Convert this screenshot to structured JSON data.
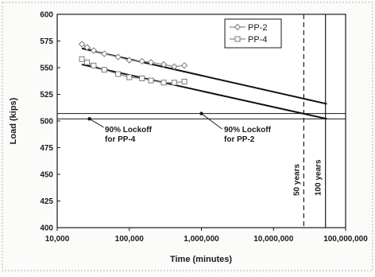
{
  "chart_data": {
    "type": "line",
    "xlabel": "Time (minutes)",
    "ylabel": "Load (kips)",
    "xscale": "log",
    "xlim": [
      10000,
      100000000
    ],
    "ylim": [
      400,
      600
    ],
    "x_ticks": [
      10000,
      100000,
      1000000,
      10000000,
      100000000
    ],
    "x_tick_labels": [
      "10,000",
      "100,000",
      "1,000,000",
      "10,000,000",
      "100,000,000"
    ],
    "y_ticks": [
      400,
      425,
      450,
      475,
      500,
      525,
      550,
      575,
      600
    ],
    "y_tick_labels": [
      "400",
      "425",
      "450",
      "475",
      "500",
      "525",
      "550",
      "575",
      "600"
    ],
    "grid": false,
    "legend": {
      "position": "top-right",
      "entries": [
        "PP-2",
        "PP-4"
      ]
    },
    "series": [
      {
        "name": "PP-2",
        "marker": "diamond",
        "color": "#8a8a8a",
        "points": [
          {
            "x": 22000,
            "y": 572
          },
          {
            "x": 26000,
            "y": 569
          },
          {
            "x": 32000,
            "y": 566
          },
          {
            "x": 45000,
            "y": 563
          },
          {
            "x": 70000,
            "y": 560
          },
          {
            "x": 100000,
            "y": 557
          },
          {
            "x": 150000,
            "y": 556
          },
          {
            "x": 200000,
            "y": 555
          },
          {
            "x": 300000,
            "y": 553
          },
          {
            "x": 420000,
            "y": 551
          },
          {
            "x": 580000,
            "y": 552
          }
        ]
      },
      {
        "name": "PP-4",
        "marker": "square",
        "color": "#8a8a8a",
        "points": [
          {
            "x": 22000,
            "y": 558
          },
          {
            "x": 26000,
            "y": 555
          },
          {
            "x": 32000,
            "y": 552
          },
          {
            "x": 45000,
            "y": 548
          },
          {
            "x": 70000,
            "y": 544
          },
          {
            "x": 100000,
            "y": 541
          },
          {
            "x": 150000,
            "y": 540
          },
          {
            "x": 200000,
            "y": 538
          },
          {
            "x": 300000,
            "y": 536
          },
          {
            "x": 420000,
            "y": 536
          },
          {
            "x": 580000,
            "y": 537
          }
        ]
      }
    ],
    "trend_lines": [
      {
        "x1": 22000,
        "y1": 568,
        "x2": 55000000,
        "y2": 516
      },
      {
        "x1": 22000,
        "y1": 553,
        "x2": 55000000,
        "y2": 502
      }
    ],
    "horizontal_lines": [
      {
        "y": 507,
        "label": "90% Lockoff\nfor PP-2"
      },
      {
        "y": 502,
        "label": "90% Lockoff\nfor PP-4"
      }
    ],
    "vertical_lines": [
      {
        "x": 26300000,
        "label": "50 years",
        "style": "dashed"
      },
      {
        "x": 52600000,
        "label": "100 years",
        "style": "solid"
      }
    ]
  }
}
